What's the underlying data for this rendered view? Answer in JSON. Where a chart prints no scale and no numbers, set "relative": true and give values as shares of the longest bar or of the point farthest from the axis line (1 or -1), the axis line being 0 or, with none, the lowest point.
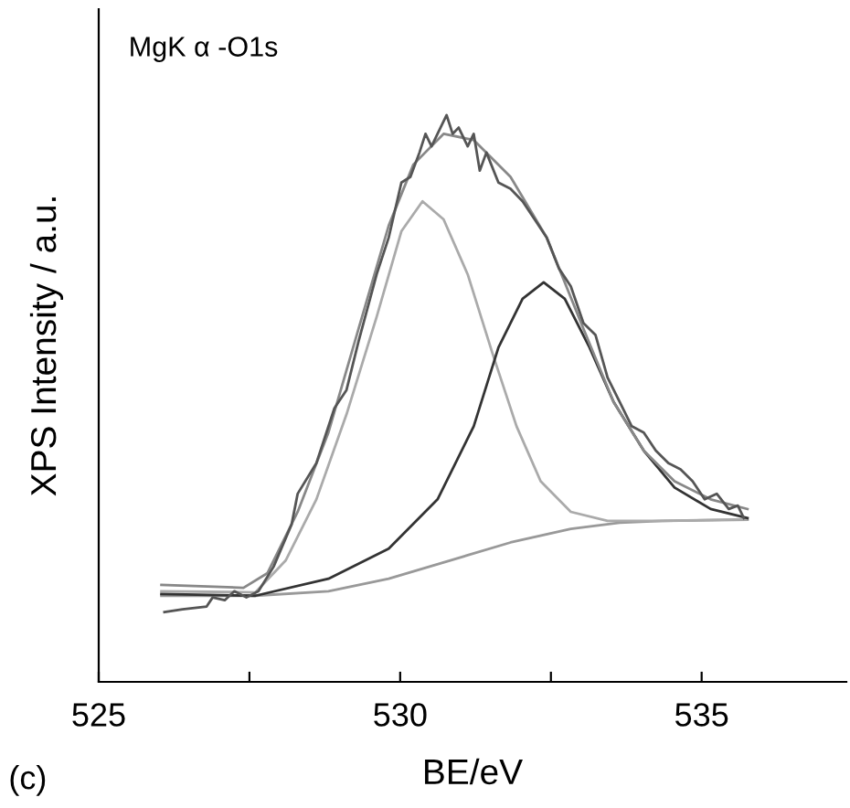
{
  "chart_data": {
    "type": "line",
    "relative": true,
    "xlabel": "BE/eV",
    "ylabel": "XPS Intensity / a.u.",
    "annotations": [
      "MgK α -O1s",
      "(c)"
    ],
    "xlim": [
      525,
      537.4
    ],
    "xticks": [
      525,
      {
        "value": 527.5,
        "label": null
      },
      530,
      {
        "value": 532.5,
        "label": null
      },
      535
    ],
    "grid": false,
    "legend": false,
    "marker": "none",
    "line_style": "solid",
    "series": [
      {
        "color": "#999999",
        "x": [
          526.04,
          527.6,
          528.81,
          529.81,
          530.82,
          531.83,
          532.83,
          533.64,
          534.35,
          535.76
        ],
        "values": [
          0.152,
          0.152,
          0.16,
          0.182,
          0.214,
          0.246,
          0.27,
          0.281,
          0.284,
          0.286
        ]
      },
      {
        "color": "#aaaaaa",
        "x": [
          526.04,
          527.6,
          528.1,
          528.61,
          529.11,
          529.61,
          530.02,
          530.37,
          530.72,
          531.12,
          531.53,
          531.93,
          532.33,
          532.83,
          533.44,
          534.35,
          535.76
        ],
        "values": [
          0.16,
          0.158,
          0.214,
          0.322,
          0.472,
          0.644,
          0.795,
          0.848,
          0.816,
          0.719,
          0.58,
          0.451,
          0.354,
          0.3,
          0.284,
          0.284,
          0.287
        ]
      },
      {
        "color": "#333333",
        "x": [
          526.04,
          527.6,
          528.81,
          529.81,
          530.62,
          531.22,
          531.63,
          532.03,
          532.38,
          532.73,
          533.14,
          533.54,
          534.04,
          534.55,
          535.15,
          535.76
        ],
        "values": [
          0.155,
          0.152,
          0.182,
          0.235,
          0.322,
          0.451,
          0.59,
          0.676,
          0.705,
          0.676,
          0.59,
          0.494,
          0.408,
          0.343,
          0.305,
          0.289
        ]
      },
      {
        "color": "#888888",
        "x": [
          526.04,
          527.4,
          527.8,
          528.3,
          528.81,
          529.31,
          529.81,
          530.22,
          530.72,
          531.22,
          531.83,
          532.43,
          533.04,
          533.54,
          534.04,
          534.55,
          535.15,
          535.76
        ],
        "values": [
          0.171,
          0.166,
          0.192,
          0.3,
          0.44,
          0.623,
          0.805,
          0.913,
          0.967,
          0.956,
          0.891,
          0.784,
          0.623,
          0.494,
          0.408,
          0.354,
          0.322,
          0.305
        ]
      },
      {
        "color": "#555555",
        "x": [
          526.09,
          526.39,
          526.79,
          526.89,
          527.09,
          527.25,
          527.45,
          527.65,
          527.9,
          528.2,
          528.3,
          528.61,
          528.91,
          529.11,
          529.31,
          529.61,
          529.81,
          530.02,
          530.17,
          530.32,
          530.42,
          530.52,
          530.62,
          530.77,
          530.87,
          530.97,
          531.12,
          531.22,
          531.32,
          531.43,
          531.63,
          531.83,
          532.03,
          532.23,
          532.43,
          532.63,
          532.83,
          533.04,
          533.24,
          533.44,
          533.64,
          533.84,
          534.04,
          534.24,
          534.45,
          534.65,
          534.85,
          535.05,
          535.25,
          535.45,
          535.6,
          535.7
        ],
        "values": [
          0.123,
          0.128,
          0.133,
          0.149,
          0.144,
          0.16,
          0.149,
          0.16,
          0.203,
          0.278,
          0.332,
          0.386,
          0.483,
          0.515,
          0.601,
          0.719,
          0.784,
          0.881,
          0.891,
          0.934,
          0.967,
          0.945,
          0.967,
          1.0,
          0.967,
          0.978,
          0.945,
          0.967,
          0.902,
          0.934,
          0.881,
          0.87,
          0.848,
          0.816,
          0.784,
          0.73,
          0.698,
          0.633,
          0.612,
          0.537,
          0.494,
          0.451,
          0.44,
          0.408,
          0.386,
          0.375,
          0.354,
          0.322,
          0.332,
          0.305,
          0.311,
          0.289
        ]
      }
    ]
  }
}
